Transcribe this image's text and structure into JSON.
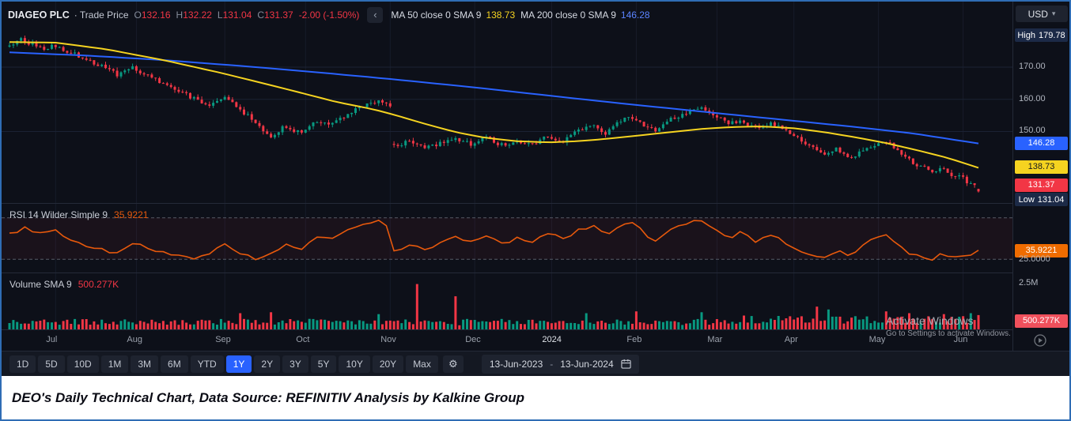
{
  "header": {
    "symbol": "DIAGEO PLC",
    "series_type": "· Trade Price",
    "ohlc": {
      "o_label": "O",
      "o": "132.16",
      "h_label": "H",
      "h": "132.22",
      "l_label": "L",
      "l": "131.04",
      "c_label": "C",
      "c": "131.37",
      "change": "-2.00 (-1.50%)"
    },
    "ma50": {
      "label": "MA 50 close 0 SMA 9",
      "value": "138.73"
    },
    "ma200": {
      "label": "MA 200 close 0 SMA 9",
      "value": "146.28"
    },
    "currency": "USD"
  },
  "icons": {
    "gear_glyph": "⚙",
    "caret_down_glyph": "▾",
    "collapse_glyph": "‹"
  },
  "price_scale": {
    "high_label": "High",
    "high_value": "179.78",
    "ticks": [
      "170.00",
      "160.00",
      "150.00"
    ],
    "ma200_badge": "146.28",
    "ma50_badge": "138.73",
    "close_badge": "131.37",
    "low_label": "Low",
    "low_value": "131.04"
  },
  "rsi_panel": {
    "label": "RSI 14 Wilder Simple 9",
    "value": "35.9221",
    "lower_label": "25.0000"
  },
  "volume_panel": {
    "label": "Volume SMA 9",
    "value": "500.277K",
    "scale_label": "2.5M",
    "badge": "500.277K"
  },
  "time_axis": {
    "labels": [
      "Jul",
      "Aug",
      "Sep",
      "Oct",
      "Nov",
      "Dec",
      "2024",
      "Feb",
      "Mar",
      "Apr",
      "May",
      "Jun"
    ],
    "month_start_days": [
      12,
      33,
      56,
      77,
      99,
      121,
      141,
      163,
      184,
      204,
      226,
      248
    ]
  },
  "toolbar": {
    "ranges": [
      "1D",
      "5D",
      "10D",
      "1M",
      "3M",
      "6M",
      "YTD",
      "1Y",
      "2Y",
      "3Y",
      "5Y",
      "10Y",
      "20Y",
      "Max"
    ],
    "selected": "1Y",
    "date_from": "13-Jun-2023",
    "date_sep": "-",
    "date_to": "13-Jun-2024"
  },
  "watermark": {
    "line1": "Activate Windows",
    "line2": "Go to Settings to activate Windows."
  },
  "caption": {
    "text": "DEO's Daily Technical Chart, Data Source: REFINITIV Analysis by Kalkine Group"
  },
  "colors": {
    "up": "#089981",
    "down": "#f23645",
    "ma50": "#f5d320",
    "ma200": "#2962ff",
    "rsi_line": "#e8590c",
    "rsi_badge": "#ef6c00",
    "volume_badge": "#f0505c",
    "badge_navy": "#1c2a47",
    "accent_blue": "#2962ff"
  },
  "chart_data": [
    {
      "type": "candlestick",
      "title": "DIAGEO PLC Trade Price, daily, 1Y, USD",
      "x_range": [
        "13-Jun-2023",
        "13-Jun-2024"
      ],
      "days": 253,
      "ohlc_last": {
        "o": 132.16,
        "h": 132.22,
        "l": 131.04,
        "c": 131.37,
        "change": -2.0,
        "change_pct": -1.5
      },
      "high_52w": 179.78,
      "low_52w": 131.04,
      "y_ticks": [
        170,
        160,
        150
      ],
      "y_domain": [
        129.5,
        183.5
      ],
      "close_keyframes": [
        [
          0,
          176.5
        ],
        [
          3,
          178.6
        ],
        [
          6,
          177.2
        ],
        [
          9,
          175.8
        ],
        [
          12,
          176.8
        ],
        [
          16,
          174.5
        ],
        [
          20,
          172.8
        ],
        [
          24,
          170.2
        ],
        [
          28,
          167.6
        ],
        [
          32,
          169.6
        ],
        [
          36,
          167.2
        ],
        [
          40,
          165.0
        ],
        [
          44,
          162.8
        ],
        [
          48,
          160.2
        ],
        [
          52,
          158.0
        ],
        [
          56,
          160.8
        ],
        [
          60,
          157.0
        ],
        [
          64,
          152.5
        ],
        [
          68,
          148.6
        ],
        [
          72,
          151.8
        ],
        [
          76,
          149.2
        ],
        [
          80,
          153.2
        ],
        [
          84,
          152.0
        ],
        [
          88,
          155.6
        ],
        [
          92,
          157.6
        ],
        [
          96,
          159.8
        ],
        [
          99,
          157.8
        ],
        [
          100,
          145.8
        ],
        [
          104,
          146.8
        ],
        [
          108,
          144.6
        ],
        [
          112,
          146.2
        ],
        [
          116,
          147.6
        ],
        [
          120,
          146.2
        ],
        [
          124,
          148.2
        ],
        [
          128,
          145.8
        ],
        [
          132,
          147.2
        ],
        [
          136,
          146.2
        ],
        [
          140,
          148.6
        ],
        [
          144,
          147.2
        ],
        [
          148,
          150.2
        ],
        [
          152,
          151.6
        ],
        [
          155,
          149.6
        ],
        [
          158,
          152.6
        ],
        [
          162,
          154.6
        ],
        [
          165,
          152.2
        ],
        [
          168,
          150.2
        ],
        [
          172,
          153.6
        ],
        [
          176,
          155.6
        ],
        [
          180,
          157.4
        ],
        [
          184,
          155.0
        ],
        [
          187,
          152.6
        ],
        [
          190,
          153.6
        ],
        [
          194,
          151.2
        ],
        [
          198,
          152.6
        ],
        [
          202,
          150.6
        ],
        [
          205,
          147.6
        ],
        [
          208,
          145.2
        ],
        [
          212,
          142.6
        ],
        [
          215,
          144.6
        ],
        [
          218,
          141.6
        ],
        [
          221,
          143.2
        ],
        [
          224,
          145.6
        ],
        [
          228,
          147.0
        ],
        [
          231,
          144.2
        ],
        [
          234,
          141.2
        ],
        [
          237,
          139.2
        ],
        [
          240,
          137.2
        ],
        [
          243,
          138.6
        ],
        [
          245,
          135.8
        ],
        [
          247,
          136.8
        ],
        [
          249,
          134.2
        ],
        [
          251,
          133.2
        ],
        [
          252,
          131.4
        ]
      ],
      "overlays": [
        {
          "name": "MA 50 close 0 SMA 9",
          "last": 138.73,
          "color_key": "ma50",
          "keyframes": [
            [
              0,
              177.8
            ],
            [
              12,
              177.6
            ],
            [
              25,
              175.6
            ],
            [
              40,
              172.2
            ],
            [
              55,
              168.2
            ],
            [
              70,
              163.8
            ],
            [
              85,
              159.2
            ],
            [
              95,
              156.8
            ],
            [
              100,
              155.2
            ],
            [
              108,
              152.4
            ],
            [
              116,
              149.8
            ],
            [
              124,
              148.0
            ],
            [
              132,
              147.0
            ],
            [
              140,
              146.6
            ],
            [
              148,
              147.0
            ],
            [
              156,
              147.8
            ],
            [
              164,
              148.8
            ],
            [
              172,
              149.8
            ],
            [
              180,
              150.8
            ],
            [
              188,
              151.4
            ],
            [
              196,
              151.6
            ],
            [
              204,
              151.0
            ],
            [
              212,
              149.8
            ],
            [
              220,
              148.2
            ],
            [
              228,
              146.4
            ],
            [
              236,
              144.2
            ],
            [
              244,
              141.8
            ],
            [
              252,
              138.73
            ]
          ]
        },
        {
          "name": "MA 200 close 0 SMA 9",
          "last": 146.28,
          "color_key": "ma200",
          "keyframes": [
            [
              0,
              174.6
            ],
            [
              20,
              173.6
            ],
            [
              40,
              172.2
            ],
            [
              60,
              170.4
            ],
            [
              80,
              168.4
            ],
            [
              100,
              166.2
            ],
            [
              120,
              163.8
            ],
            [
              140,
              161.2
            ],
            [
              160,
              158.6
            ],
            [
              180,
              156.2
            ],
            [
              200,
              153.8
            ],
            [
              220,
              151.4
            ],
            [
              235,
              149.4
            ],
            [
              252,
              146.28
            ]
          ]
        }
      ]
    },
    {
      "type": "line",
      "title": "RSI 14 Wilder Simple 9",
      "last": 35.9221,
      "levels": {
        "upper": 75,
        "lower": 25
      },
      "visible_level_label": "25.0000",
      "y_domain": [
        12,
        88
      ],
      "keyframes": [
        [
          0,
          55
        ],
        [
          4,
          63
        ],
        [
          8,
          56
        ],
        [
          12,
          60
        ],
        [
          16,
          48
        ],
        [
          20,
          42
        ],
        [
          24,
          36
        ],
        [
          28,
          32
        ],
        [
          32,
          45
        ],
        [
          36,
          38
        ],
        [
          40,
          34
        ],
        [
          44,
          30
        ],
        [
          48,
          27
        ],
        [
          52,
          33
        ],
        [
          56,
          45
        ],
        [
          60,
          33
        ],
        [
          64,
          26
        ],
        [
          68,
          31
        ],
        [
          72,
          42
        ],
        [
          76,
          38
        ],
        [
          80,
          52
        ],
        [
          84,
          49
        ],
        [
          88,
          60
        ],
        [
          92,
          66
        ],
        [
          96,
          72
        ],
        [
          98,
          65
        ],
        [
          100,
          34
        ],
        [
          104,
          42
        ],
        [
          108,
          36
        ],
        [
          112,
          44
        ],
        [
          116,
          52
        ],
        [
          120,
          45
        ],
        [
          124,
          55
        ],
        [
          128,
          43
        ],
        [
          132,
          51
        ],
        [
          136,
          47
        ],
        [
          140,
          57
        ],
        [
          144,
          50
        ],
        [
          148,
          60
        ],
        [
          152,
          65
        ],
        [
          155,
          54
        ],
        [
          158,
          64
        ],
        [
          162,
          70
        ],
        [
          165,
          57
        ],
        [
          168,
          47
        ],
        [
          172,
          61
        ],
        [
          176,
          67
        ],
        [
          180,
          73
        ],
        [
          184,
          61
        ],
        [
          187,
          51
        ],
        [
          190,
          57
        ],
        [
          194,
          47
        ],
        [
          198,
          54
        ],
        [
          202,
          45
        ],
        [
          205,
          37
        ],
        [
          208,
          31
        ],
        [
          212,
          27
        ],
        [
          215,
          36
        ],
        [
          218,
          29
        ],
        [
          221,
          38
        ],
        [
          224,
          48
        ],
        [
          228,
          55
        ],
        [
          231,
          42
        ],
        [
          234,
          33
        ],
        [
          237,
          29
        ],
        [
          240,
          26
        ],
        [
          243,
          35
        ],
        [
          245,
          25
        ],
        [
          247,
          33
        ],
        [
          249,
          28
        ],
        [
          251,
          33
        ],
        [
          252,
          35.92
        ]
      ]
    },
    {
      "type": "bar",
      "title": "Volume SMA 9",
      "sma_last_label": "500.277K",
      "sma_last_k": 500.277,
      "scale_top_label": "2.5M",
      "scale_top_k": 2500,
      "base_range_k": [
        260,
        600
      ],
      "spikes_k": {
        "60": 900,
        "68": 950,
        "96": 850,
        "106": 2450,
        "116": 1800,
        "150": 900,
        "163": 1000,
        "180": 950,
        "210": 1250,
        "213": 1100,
        "228": 1000,
        "234": 900,
        "243": 850,
        "250": 900,
        "252": 800
      }
    }
  ]
}
